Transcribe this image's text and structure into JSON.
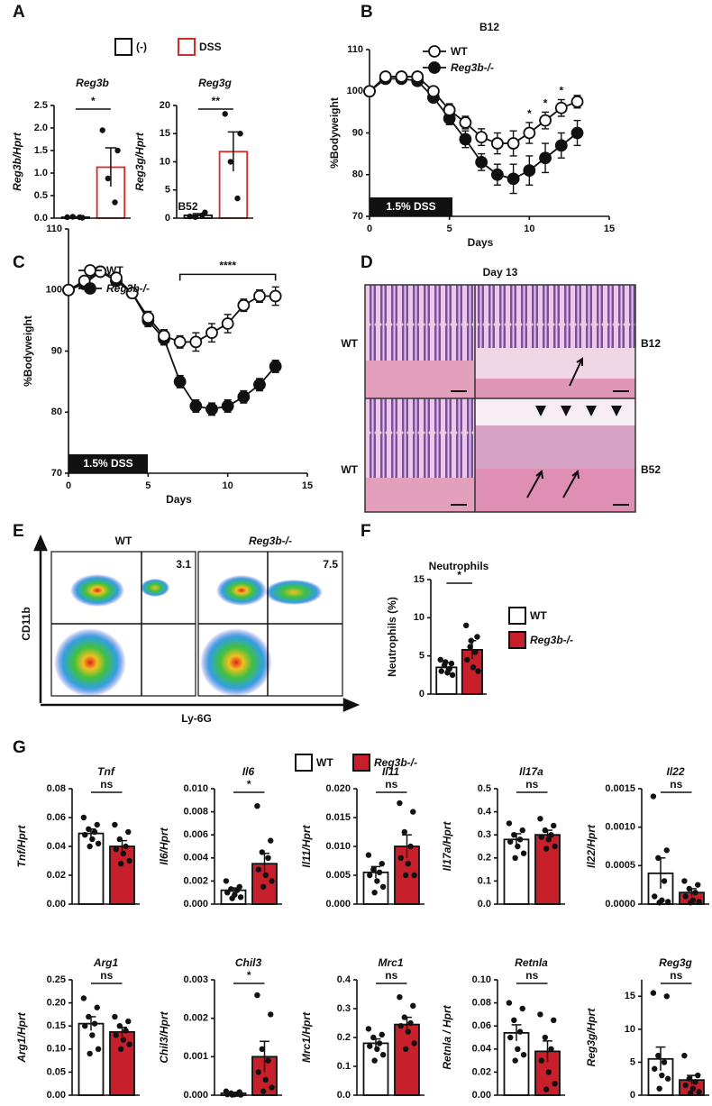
{
  "chart_data": [
    {
      "type": "bar",
      "panel": "A",
      "legend": [
        {
          "name": "(-)",
          "fill": "#ffffff",
          "stroke": "#111111"
        },
        {
          "name": "DSS",
          "fill": "#ffffff",
          "stroke": "#d62b2b"
        }
      ],
      "charts": [
        {
          "title": "Reg3b",
          "ylabel": "Reg3b/Hprt",
          "ylim": [
            0,
            2.5
          ],
          "yticks": [
            {
              "value": 0,
              "label": "0.0"
            },
            0.5,
            {
              "value": 1,
              "label": "1.0"
            },
            1.5,
            {
              "value": 2,
              "label": "2.0"
            },
            2.5
          ],
          "values": [
            0.02,
            1.13
          ],
          "errors": [
            0.01,
            0.43
          ],
          "points": [
            [
              0.02,
              0.01,
              0.03,
              0.02
            ],
            [
              1.95,
              1.5,
              0.88,
              0.35
            ]
          ],
          "significance": "*"
        },
        {
          "title": "Reg3g",
          "ylabel": "Reg3g/Hprt",
          "ylim": [
            0,
            20
          ],
          "yticks": [
            0,
            5,
            10,
            15,
            20
          ],
          "values": [
            0.5,
            11.8
          ],
          "errors": [
            0.3,
            3.5
          ],
          "points": [
            [
              0.3,
              1.0,
              0.2,
              0.5
            ],
            [
              18.5,
              15,
              10,
              3.5
            ]
          ],
          "significance": "**"
        }
      ]
    },
    {
      "type": "line",
      "panel": "B",
      "title": "B12",
      "xlabel": "Days",
      "ylabel": "%Bodyweight",
      "xlim": [
        0,
        15
      ],
      "xticks": [
        0,
        5,
        10,
        15
      ],
      "ylim": [
        70,
        110
      ],
      "yticks": [
        70,
        80,
        90,
        100,
        110
      ],
      "x": [
        0,
        1,
        2,
        3,
        4,
        5,
        6,
        7,
        8,
        9,
        10,
        11,
        12,
        13
      ],
      "series": [
        {
          "name": "WT",
          "fill": "#ffffff",
          "values": [
            100,
            103.5,
            103.5,
            103.5,
            100,
            95.5,
            92.5,
            89,
            87.5,
            87.5,
            90,
            93,
            96,
            97.5
          ],
          "errors": [
            0.5,
            1,
            1,
            1,
            1,
            1.5,
            1.5,
            2,
            2.5,
            3,
            2.5,
            2,
            2,
            1.5
          ]
        },
        {
          "name": "Reg3b-/-",
          "fill": "#111111",
          "values": [
            100,
            103,
            103,
            102.5,
            98.5,
            93.5,
            88.5,
            83,
            80,
            79,
            81,
            84,
            87,
            90
          ],
          "errors": [
            0.5,
            1,
            1,
            1,
            1,
            1.5,
            2,
            2,
            2.5,
            3.5,
            3.5,
            3.5,
            3,
            3
          ]
        }
      ],
      "annotation": "1.5% DSS",
      "significance": [
        {
          "x": 10,
          "label": "*"
        },
        {
          "x": 11,
          "label": "*"
        },
        {
          "x": 12,
          "label": "*"
        }
      ]
    },
    {
      "type": "line",
      "panel": "C",
      "title": "B52",
      "xlabel": "Days",
      "ylabel": "%Bodyweight",
      "xlim": [
        0,
        15
      ],
      "xticks": [
        0,
        5,
        10,
        15
      ],
      "ylim": [
        70,
        110
      ],
      "yticks": [
        70,
        80,
        90,
        100,
        110
      ],
      "x": [
        0,
        1,
        2,
        3,
        4,
        5,
        6,
        7,
        8,
        9,
        10,
        11,
        12,
        13
      ],
      "series": [
        {
          "name": "WT",
          "fill": "#ffffff",
          "values": [
            100,
            101.5,
            103,
            102,
            99.5,
            95.5,
            92.5,
            91.5,
            91.5,
            93,
            94.5,
            97.5,
            99,
            99
          ],
          "errors": [
            0.5,
            0.5,
            0.5,
            0.5,
            0.5,
            1,
            1,
            1,
            1.5,
            1.5,
            1.5,
            1,
            1,
            1.5
          ]
        },
        {
          "name": "Reg3b-/-",
          "fill": "#111111",
          "values": [
            100,
            101,
            103,
            101.5,
            99.5,
            95,
            92,
            85,
            81,
            80.5,
            81,
            82.5,
            84.5,
            87.5
          ],
          "errors": [
            0.5,
            0.5,
            0.5,
            0.5,
            0.5,
            1,
            1,
            1,
            1,
            1,
            1,
            1,
            1,
            1
          ]
        }
      ],
      "annotation": "1.5% DSS",
      "bracket": {
        "x": [
          7,
          13
        ],
        "label": "****"
      }
    },
    {
      "type": "histology",
      "panel": "D",
      "title": "Day 13",
      "labels": [
        "WT",
        "B12",
        "WT",
        "B52"
      ]
    },
    {
      "type": "cytometry",
      "panel": "E",
      "ylabel": "CD11b",
      "xlabel": "Ly-6G",
      "plots": [
        {
          "title": "WT",
          "value": 3.1
        },
        {
          "title": "Reg3b-/-",
          "value": 7.5
        }
      ]
    },
    {
      "type": "bar",
      "panel": "F",
      "legend": [
        {
          "name": "WT",
          "fill": "#ffffff",
          "stroke": "#111111"
        },
        {
          "name": "Reg3b-/-",
          "fill": "#c8202a",
          "stroke": "#111111"
        }
      ],
      "charts": [
        {
          "title": "Neutrophils",
          "ylabel": "Neutrophils (%)",
          "ylim": [
            0,
            15
          ],
          "yticks": [
            0,
            5,
            10,
            15
          ],
          "values": [
            3.5,
            5.8
          ],
          "errors": [
            0.6,
            1.2
          ],
          "points": [
            [
              4.5,
              4,
              3.8,
              3.3,
              3,
              2.8,
              2.5,
              4.2
            ],
            [
              9,
              7.5,
              6.2,
              5.5,
              4.5,
              3.5,
              3,
              7
            ]
          ],
          "significance": "*"
        }
      ]
    },
    {
      "type": "bar",
      "panel": "G",
      "legend": [
        {
          "name": "WT",
          "fill": "#ffffff",
          "stroke": "#111111"
        },
        {
          "name": "Reg3b-/-",
          "fill": "#c8202a",
          "stroke": "#111111"
        }
      ],
      "charts": [
        {
          "title": "Tnf",
          "ylabel": "Tnf/Hprt",
          "ylim": [
            0,
            0.08
          ],
          "yticks": [
            {
              "value": 0,
              "label": "0.00"
            },
            0.02,
            0.04,
            0.06,
            0.08
          ],
          "values": [
            0.049,
            0.04
          ],
          "errors": [
            0.003,
            0.004
          ],
          "points": [
            [
              0.06,
              0.055,
              0.052,
              0.05,
              0.048,
              0.045,
              0.042,
              0.04
            ],
            [
              0.055,
              0.05,
              0.045,
              0.04,
              0.038,
              0.035,
              0.03,
              0.028
            ]
          ],
          "significance": "ns"
        },
        {
          "title": "Il6",
          "ylabel": "Il6/Hprt",
          "ylim": [
            0,
            0.01
          ],
          "yticks": [
            {
              "value": 0,
              "label": "0.000"
            },
            0.002,
            0.004,
            0.006,
            0.008,
            {
              "value": 0.01,
              "label": "0.010"
            }
          ],
          "values": [
            0.0012,
            0.0035
          ],
          "errors": [
            0.0002,
            0.0009
          ],
          "points": [
            [
              0.002,
              0.0015,
              0.0013,
              0.0012,
              0.001,
              0.0008,
              0.0006,
              0.0005
            ],
            [
              0.0085,
              0.0055,
              0.0045,
              0.004,
              0.003,
              0.0025,
              0.002,
              0.0015
            ]
          ],
          "significance": "*"
        },
        {
          "title": "Il11",
          "ylabel": "Il11/Hprt",
          "ylim": [
            0,
            0.02
          ],
          "yticks": [
            {
              "value": 0,
              "label": "0.000"
            },
            0.005,
            {
              "value": 0.01,
              "label": "0.010"
            },
            0.015,
            {
              "value": 0.02,
              "label": "0.020"
            }
          ],
          "values": [
            0.0055,
            0.01
          ],
          "errors": [
            0.001,
            0.002
          ],
          "points": [
            [
              0.0085,
              0.007,
              0.006,
              0.0055,
              0.005,
              0.004,
              0.003,
              0.002
            ],
            [
              0.0175,
              0.016,
              0.0125,
              0.01,
              0.008,
              0.007,
              0.005,
              0.005
            ]
          ],
          "significance": "ns"
        },
        {
          "title": "Il17a",
          "ylabel": "Il17a/Hprt",
          "ylim": [
            0,
            0.5
          ],
          "yticks": [
            {
              "value": 0,
              "label": "0.0"
            },
            0.1,
            0.2,
            0.3,
            0.4,
            0.5
          ],
          "values": [
            0.28,
            0.3
          ],
          "errors": [
            0.025,
            0.02
          ],
          "points": [
            [
              0.35,
              0.32,
              0.3,
              0.28,
              0.27,
              0.25,
              0.22,
              0.2
            ],
            [
              0.37,
              0.34,
              0.32,
              0.3,
              0.29,
              0.28,
              0.25,
              0.24
            ]
          ],
          "significance": "ns"
        },
        {
          "title": "Il22",
          "ylabel": "Il22/Hprt",
          "ylim": [
            0,
            0.0015
          ],
          "yticks": [
            {
              "value": 0,
              "label": "0.0000"
            },
            0.0005,
            {
              "value": 0.001,
              "label": "0.0010"
            },
            0.0015
          ],
          "values": [
            0.0004,
            0.00015
          ],
          "errors": [
            0.0002,
            5e-05
          ],
          "points": [
            [
              0.0014,
              0.0007,
              0.0006,
              0.0003,
              0.0001,
              5e-05,
              3e-05,
              2e-05
            ],
            [
              0.0003,
              0.00025,
              0.0002,
              0.00015,
              0.0001,
              5e-05,
              3e-05,
              2e-05
            ]
          ],
          "significance": "ns"
        },
        {
          "title": "Arg1",
          "ylabel": "Arg1/Hprt",
          "ylim": [
            0,
            0.25
          ],
          "yticks": [
            {
              "value": 0,
              "label": "0.00"
            },
            0.05,
            {
              "value": 0.1,
              "label": "0.10"
            },
            0.15,
            {
              "value": 0.2,
              "label": "0.20"
            },
            0.25
          ],
          "values": [
            0.155,
            0.137
          ],
          "errors": [
            0.015,
            0.01
          ],
          "points": [
            [
              0.21,
              0.19,
              0.17,
              0.155,
              0.15,
              0.13,
              0.1,
              0.09
            ],
            [
              0.17,
              0.16,
              0.15,
              0.14,
              0.13,
              0.12,
              0.11,
              0.1
            ]
          ],
          "significance": "ns"
        },
        {
          "title": "Chil3",
          "ylabel": "Chil3/Hprt",
          "ylim": [
            0,
            0.003
          ],
          "yticks": [
            {
              "value": 0,
              "label": "0.000"
            },
            0.001,
            0.002,
            0.003
          ],
          "values": [
            5e-05,
            0.001
          ],
          "errors": [
            2e-05,
            0.0004
          ],
          "points": [
            [
              0.0001,
              8e-05,
              5e-05,
              3e-05,
              2e-05,
              2e-05,
              1e-05,
              1e-05
            ],
            [
              0.0026,
              0.0021,
              0.0012,
              0.0009,
              0.0006,
              0.0004,
              0.0002,
              0.0001
            ]
          ],
          "significance": "*"
        },
        {
          "title": "Mrc1",
          "ylabel": "Mrc1/Hprt",
          "ylim": [
            0,
            0.4
          ],
          "yticks": [
            {
              "value": 0,
              "label": "0.0"
            },
            0.1,
            0.2,
            0.3,
            0.4
          ],
          "values": [
            0.18,
            0.245
          ],
          "errors": [
            0.015,
            0.025
          ],
          "points": [
            [
              0.23,
              0.21,
              0.2,
              0.18,
              0.17,
              0.16,
              0.14,
              0.12
            ],
            [
              0.34,
              0.31,
              0.27,
              0.25,
              0.24,
              0.22,
              0.18,
              0.16
            ]
          ],
          "significance": "ns"
        },
        {
          "title": "Retnla",
          "ylabel": "Retnla / Hprt",
          "ylim": [
            0,
            0.1
          ],
          "yticks": [
            {
              "value": 0,
              "label": "0.00"
            },
            0.02,
            0.04,
            0.06,
            0.08,
            {
              "value": 0.1,
              "label": "0.10"
            }
          ],
          "values": [
            0.054,
            0.038
          ],
          "errors": [
            0.007,
            0.009
          ],
          "points": [
            [
              0.08,
              0.075,
              0.065,
              0.055,
              0.05,
              0.04,
              0.035,
              0.03
            ],
            [
              0.07,
              0.065,
              0.05,
              0.04,
              0.03,
              0.02,
              0.01,
              0.005
            ]
          ],
          "significance": "ns"
        },
        {
          "title": "Reg3g",
          "ylabel": "Reg3g/Hprt",
          "ylim": [
            0,
            17.5
          ],
          "yticks": [
            0,
            5,
            10,
            15
          ],
          "values": [
            5.5,
            2.3
          ],
          "errors": [
            1.8,
            0.7
          ],
          "points": [
            [
              15.5,
              15,
              6,
              5,
              4,
              3,
              2.5,
              1
            ],
            [
              6,
              3,
              2.5,
              2,
              1.5,
              1,
              0.5,
              0.3
            ]
          ],
          "significance": "ns"
        }
      ]
    }
  ]
}
